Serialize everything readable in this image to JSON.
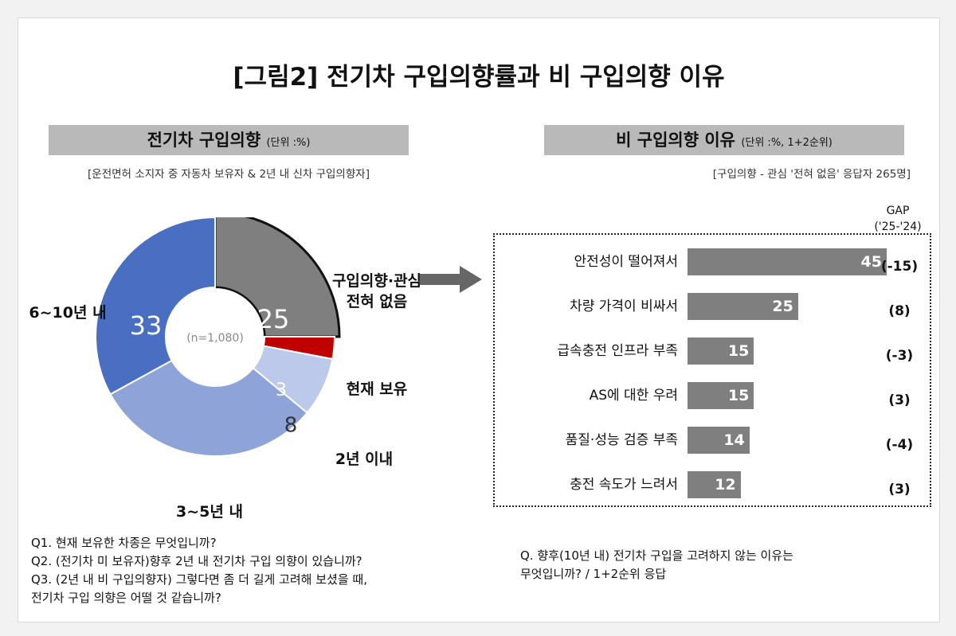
{
  "figure_title": "[그림2] 전기차 구입의향률과 비 구입의향 이유",
  "left": {
    "header": "전기차 구입의향",
    "unit": "(단위 :%)",
    "subtitle": "[운전면허 소지자 중 자동차 보유자 & 2년 내 신차 구입의향자]",
    "n_label": "(n=1,080)",
    "questions": [
      "Q1. 현재 보유한 차종은 무엇입니까?",
      "Q2. (전기차 미 보유자)향후 2년 내 전기차 구입 의향이 있습니까?",
      "Q3. (2년 내 비 구입의향자) 그렇다면 좀 더 길게 고려해 보셨을 때,",
      "전기차 구입 의향은 어떨 것 같습니까?"
    ]
  },
  "right": {
    "header": "비 구입의향 이유",
    "unit": "(단위 :%, 1+2순위)",
    "subtitle": "[구입의향 - 관심 '전혀 없음' 응답자 265명]",
    "gap_header": "GAP",
    "gap_sub": "('25-'24)",
    "question_line1": "Q. 향후(10년 내) 전기차 구입을 고려하지 않는 이유는",
    "question_line2": "무엇입니까? / 1+2순위 응답"
  },
  "chart_data": [
    {
      "type": "pie",
      "variant": "donut",
      "categories": [
        "구입의향·관심 전혀 없음",
        "현재 보유",
        "2년 이내",
        "3~5년 내",
        "6~10년 내"
      ],
      "label_lines": [
        [
          "구입의향·관심",
          "전혀 없음"
        ],
        [
          "현재 보유"
        ],
        [
          "2년 이내"
        ],
        [
          "3~5년 내"
        ],
        [
          "6~10년 내"
        ]
      ],
      "values": [
        25,
        3,
        8,
        31,
        33
      ],
      "colors": [
        "#7f7f7f",
        "#c00000",
        "#bcc9ea",
        "#8ea4d9",
        "#4a6fc2"
      ],
      "highlighted": "구입의향·관심 전혀 없음"
    },
    {
      "type": "bar",
      "orientation": "horizontal",
      "categories": [
        "안전성이 떨어져서",
        "차량 가격이 비싸서",
        "급속충전 인프라 부족",
        "AS에 대한 우려",
        "품질·성능 검증 부족",
        "충전 속도가 느려서"
      ],
      "values": [
        45,
        25,
        15,
        15,
        14,
        12
      ],
      "gap": [
        "(-15)",
        "(8)",
        "(-3)",
        "(3)",
        "(-4)",
        "(3)"
      ],
      "bar_color": "#7f7f7f"
    }
  ]
}
